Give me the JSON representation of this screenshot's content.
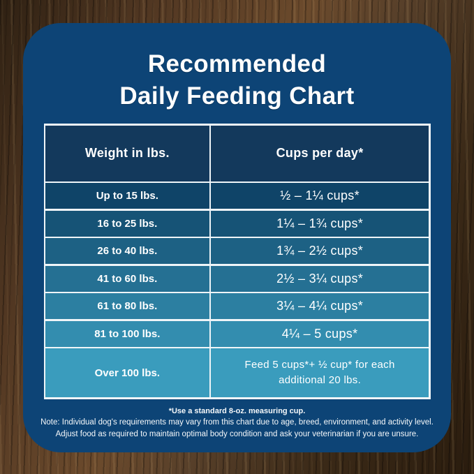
{
  "chart_data": {
    "type": "table",
    "title": "Recommended Daily Feeding Chart",
    "title_lines": [
      "Recommended",
      "Daily Feeding Chart"
    ],
    "columns": [
      "Weight in lbs.",
      "Cups per day*"
    ],
    "rows": [
      {
        "weight": "Up to 15 lbs.",
        "cups": "½ – 1¼ cups*"
      },
      {
        "weight": "16 to 25 lbs.",
        "cups": "1¼ – 1¾  cups*"
      },
      {
        "weight": "26 to 40 lbs.",
        "cups": "1¾ – 2½ cups*"
      },
      {
        "weight": "41 to 60 lbs.",
        "cups": "2½ – 3¼ cups*"
      },
      {
        "weight": "61 to 80 lbs.",
        "cups": "3¼ – 4¼ cups*"
      },
      {
        "weight": "81 to 100 lbs.",
        "cups": "4¼ – 5 cups*"
      },
      {
        "weight": "Over 100 lbs.",
        "cups": "Feed 5 cups*+ ½ cup* for each additional 20 lbs."
      }
    ],
    "footnotes": [
      "*Use a standard 8-oz. measuring cup.",
      "Note: Individual dog's requirements may vary from this chart due to age, breed, environment, and activity level.",
      "Adjust food as required to maintain optimal body condition and ask your veterinarian if you are unsure."
    ]
  },
  "styles": {
    "card_bg": "#0D4476",
    "header_color": "#13395C",
    "table_border": "#EFF5F8",
    "text_color": "#FFFFFF",
    "row_colors": [
      "#0F4468",
      "#165376",
      "#1D6184",
      "#257093",
      "#2C7FA1",
      "#338DAF",
      "#3A9CBD"
    ]
  }
}
